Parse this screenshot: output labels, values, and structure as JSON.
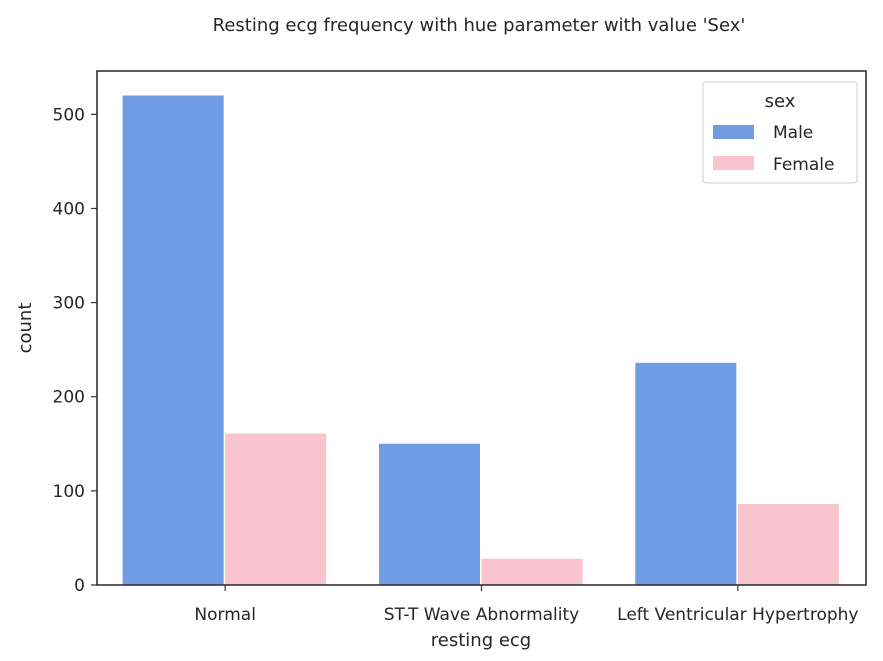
{
  "chart_data": {
    "type": "bar",
    "title": "Resting ecg frequency with hue parameter with value 'Sex'",
    "xlabel": "resting ecg",
    "ylabel": "count",
    "categories": [
      "Normal",
      "ST-T Wave Abnormality",
      "Left Ventricular Hypertrophy"
    ],
    "series": [
      {
        "name": "Male",
        "values": [
          520,
          150,
          236
        ],
        "color": "#6f9ce2"
      },
      {
        "name": "Female",
        "values": [
          161,
          28,
          86
        ],
        "color": "#f9c4ce"
      }
    ],
    "yticks": [
      0,
      100,
      200,
      300,
      400,
      500
    ],
    "ylim": [
      0,
      546
    ],
    "grid": false,
    "legend": {
      "title": "sex",
      "placement": "top-right"
    }
  }
}
